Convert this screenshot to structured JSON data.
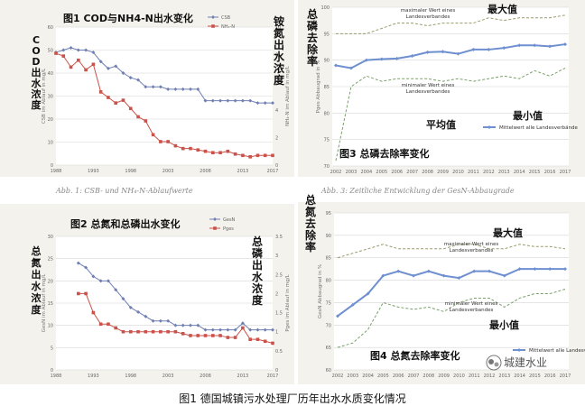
{
  "caption": "图1    德国城镇污水处理厂历年出水水质变化情况",
  "watermark": {
    "text": "城建水业",
    "icon": "wechat-icon"
  },
  "subcaptions": {
    "left": "Abb. 1: CSB- und NH₄-N-Ablaufwerte",
    "right": "Abb. 3: Zeitliche Entwicklung der GesN-Abbaugrade"
  },
  "colors": {
    "blue": "#6f7fb2",
    "red": "#c9524a",
    "olive": "#9a9a6a",
    "green": "#7aa06a",
    "bluefill": "#6e8fd0"
  },
  "chart_data": [
    {
      "type": "line",
      "title": "图1  COD与NH4-N出水变化",
      "left_axis_title": "COD出水浓度",
      "right_axis_title": "铵氮出水浓度",
      "ylabel": "CSB im Ablauf in mg/L",
      "y2label": "NH₄-N im Ablauf in mg/L",
      "ylim": [
        0,
        60
      ],
      "y2lim": [
        0,
        10
      ],
      "yticks": [
        "0",
        "10",
        "20",
        "30",
        "40",
        "50",
        "60"
      ],
      "y2ticks": [
        "0",
        "2",
        "4",
        "6",
        "8",
        "10"
      ],
      "xlim": [
        1988,
        2017
      ],
      "xticks": [
        "1988",
        "1993",
        "1998",
        "2003",
        "2008",
        "2013",
        "2017"
      ],
      "series": [
        {
          "name": "CSB",
          "axis": "left",
          "x": [
            1988,
            1989,
            1990,
            1991,
            1992,
            1993,
            1994,
            1995,
            1996,
            1997,
            1998,
            1999,
            2000,
            2001,
            2002,
            2003,
            2004,
            2005,
            2006,
            2007,
            2008,
            2009,
            2010,
            2011,
            2012,
            2013,
            2014,
            2015,
            2016,
            2017
          ],
          "values": [
            49,
            50,
            51,
            50,
            50,
            49,
            45,
            42,
            43,
            40,
            38,
            37,
            34,
            34,
            34,
            33,
            33,
            33,
            33,
            33,
            28,
            28,
            28,
            28,
            28,
            28,
            28,
            27,
            27,
            27
          ]
        },
        {
          "name": "NH₄-N",
          "axis": "right",
          "x": [
            1988,
            1989,
            1990,
            1991,
            1992,
            1993,
            1994,
            1995,
            1996,
            1997,
            1998,
            1999,
            2000,
            2001,
            2002,
            2003,
            2004,
            2005,
            2006,
            2007,
            2008,
            2009,
            2010,
            2011,
            2012,
            2013,
            2014,
            2015,
            2016,
            2017
          ],
          "values": [
            8.1,
            7.9,
            7.1,
            7.6,
            6.9,
            7.3,
            5.3,
            4.9,
            4.5,
            4.7,
            4.1,
            3.5,
            3.2,
            2.2,
            1.7,
            1.7,
            1.4,
            1.2,
            1.2,
            1.1,
            1.0,
            0.9,
            0.9,
            1.0,
            0.8,
            0.7,
            0.6,
            0.7,
            0.7,
            0.7
          ]
        }
      ]
    },
    {
      "type": "line",
      "title": "图3  总磷去除率变化",
      "left_axis_title": "总磷去除率",
      "ylabel": "Pges Abbaugrad in %",
      "ylim": [
        70,
        100
      ],
      "yticks": [
        "70",
        "75",
        "80",
        "85",
        "90",
        "95",
        "100"
      ],
      "xticks": [
        "2002",
        "2003",
        "2004",
        "2005",
        "2006",
        "2007",
        "2008",
        "2009",
        "2010",
        "2011",
        "2012",
        "2013",
        "2014",
        "2015",
        "2016",
        "2017"
      ],
      "annotations": {
        "max": "最大值",
        "min": "最小值",
        "avg": "平均值",
        "max_de": "maximaler Wert eines Landesverbandes",
        "min_de": "minimaler Wert eines Landesverbandes"
      },
      "legend": "Mittelwert alle Landesverbände",
      "series": [
        {
          "name": "Mittelwert alle Landesverbände",
          "values": [
            89,
            88.5,
            90,
            90.2,
            90.3,
            90.8,
            91.5,
            91.6,
            91.2,
            92,
            92,
            92.3,
            92.8,
            92.8,
            92.6,
            93
          ]
        },
        {
          "name": "maximaler Wert eines Landesverbandes",
          "values": [
            95,
            95,
            95,
            96,
            97,
            97,
            96.5,
            97,
            97,
            97,
            98,
            97.5,
            98,
            98,
            98,
            98.5
          ]
        },
        {
          "name": "minimaler Wert eines Landesverbandes",
          "values": [
            71,
            85,
            87,
            86,
            86.5,
            86.5,
            86.5,
            86,
            86.5,
            86,
            86.5,
            87,
            86.5,
            88,
            87,
            88.5
          ]
        }
      ]
    },
    {
      "type": "line",
      "title": "图2  总氮和总磷出水变化",
      "left_axis_title": "总氮出水浓度",
      "right_axis_title": "总磷出水浓度",
      "ylabel": "GesN im Ablauf in mg/L",
      "y2label": "Pges im Ablauf in mg/L",
      "ylim": [
        0,
        30
      ],
      "y2lim": [
        0,
        3.5
      ],
      "yticks": [
        "0",
        "5",
        "10",
        "15",
        "20",
        "25",
        "30"
      ],
      "y2ticks": [
        "0",
        "0.5",
        "1",
        "1.5",
        "2",
        "2.5",
        "3",
        "3.5"
      ],
      "xlim": [
        1988,
        2017
      ],
      "xticks": [
        "1988",
        "1993",
        "1998",
        "2003",
        "2008",
        "2013",
        "2017"
      ],
      "series": [
        {
          "name": "GesN",
          "axis": "left",
          "x": [
            1991,
            1992,
            1993,
            1994,
            1995,
            1996,
            1997,
            1998,
            1999,
            2000,
            2001,
            2002,
            2003,
            2004,
            2005,
            2006,
            2007,
            2008,
            2009,
            2010,
            2011,
            2012,
            2013,
            2014,
            2015,
            2016,
            2017
          ],
          "values": [
            24,
            23,
            21,
            20,
            20,
            18,
            16,
            14,
            13,
            12,
            11,
            11,
            11,
            10,
            10,
            10,
            10,
            9,
            9,
            9,
            9,
            9,
            10.5,
            9,
            9,
            9,
            9
          ]
        },
        {
          "name": "Pges",
          "axis": "right",
          "x": [
            1991,
            1992,
            1993,
            1994,
            1995,
            1996,
            1997,
            1998,
            1999,
            2000,
            2001,
            2002,
            2003,
            2004,
            2005,
            2006,
            2007,
            2008,
            2009,
            2010,
            2011,
            2012,
            2013,
            2014,
            2015,
            2016,
            2017
          ],
          "values": [
            2.0,
            2.0,
            1.5,
            1.2,
            1.2,
            1.1,
            1.0,
            1.0,
            1.0,
            1.0,
            1.0,
            1.0,
            1.0,
            1.0,
            0.95,
            0.9,
            0.9,
            0.9,
            0.9,
            0.9,
            0.85,
            0.85,
            1.1,
            0.8,
            0.8,
            0.75,
            0.7
          ]
        }
      ]
    },
    {
      "type": "line",
      "title": "图4  总氮去除率变化",
      "left_axis_title": "总氮去除率",
      "ylabel": "GesN Abbaugrad in %",
      "ylim": [
        60,
        95
      ],
      "yticks": [
        "60",
        "65",
        "70",
        "75",
        "80",
        "85",
        "90",
        "95"
      ],
      "xticks": [
        "2002",
        "2003",
        "2004",
        "2005",
        "2006",
        "2007",
        "2008",
        "2009",
        "2010",
        "2011",
        "2012",
        "2013",
        "2014",
        "2015",
        "2016",
        "2017"
      ],
      "annotations": {
        "max": "最大值",
        "min": "最小值",
        "max_de": "maximaler Wert eines Landesverbandes",
        "min_de": "minimaler Wert eines Landesverbandes"
      },
      "legend": "Mittelwert alle Landesverbände",
      "series": [
        {
          "name": "Mittelwert alle Landesverbände",
          "values": [
            72,
            74.5,
            77,
            81,
            82,
            81,
            82,
            81,
            80.5,
            82,
            82,
            81,
            82.5,
            82.5,
            82.5,
            82.5
          ]
        },
        {
          "name": "maximaler Wert eines Landesverbandes",
          "values": [
            85,
            86,
            87,
            88,
            87,
            87,
            87,
            87,
            88,
            88,
            87,
            87,
            88,
            87.5,
            87.5,
            87
          ]
        },
        {
          "name": "minimaler Wert eines Landesverbandes",
          "values": [
            65,
            66,
            69,
            75,
            74,
            73.5,
            74,
            73,
            75,
            76,
            76,
            74,
            76,
            77,
            77,
            78
          ]
        }
      ]
    }
  ]
}
